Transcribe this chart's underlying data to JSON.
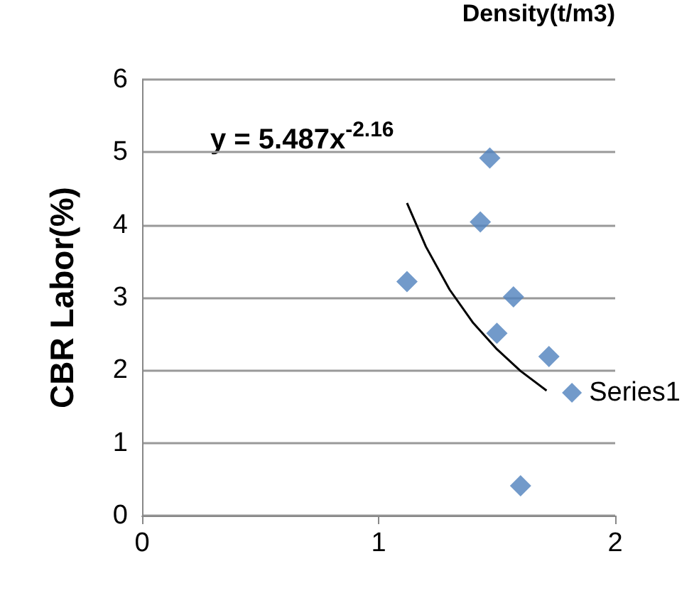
{
  "chart_data": {
    "type": "scatter",
    "xlabel": "Density(t/m3)",
    "ylabel": "CBR Labor(%)",
    "annotations": [
      "y = 5.487x$^{-2.16}$"
    ],
    "series": [
      {
        "name": "Series1",
        "color": "#4f81bd",
        "x": [
          1.47,
          1.43,
          1.12,
          1.57,
          1.5,
          1.72,
          1.6
        ],
        "values": [
          4.92,
          4.04,
          3.22,
          3.01,
          2.51,
          2.19,
          0.41
        ]
      },
      {
        "type": "line",
        "color": "#000000",
        "marker": "none",
        "x": [
          1.12,
          1.2,
          1.3,
          1.4,
          1.5,
          1.6,
          1.71
        ],
        "values": [
          4.3,
          3.7,
          3.11,
          2.65,
          2.29,
          1.99,
          1.72
        ]
      }
    ],
    "xlim": [
      0,
      2
    ],
    "xticks": [
      0,
      1,
      2
    ],
    "ylim": [
      0,
      6
    ],
    "yticks": [
      0,
      1,
      2,
      3,
      4,
      5,
      6
    ],
    "grid": "y",
    "legend": "right",
    "marker": "diamond"
  }
}
